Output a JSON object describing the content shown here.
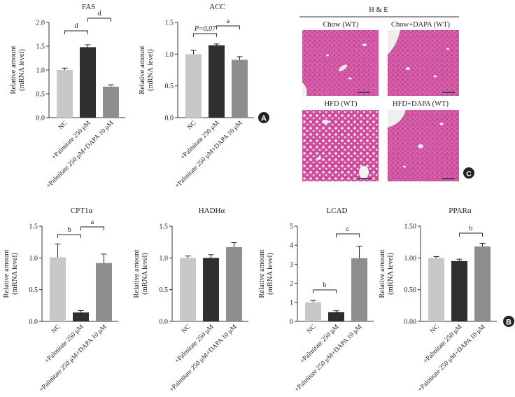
{
  "colors": {
    "NC": "#c8c8c8",
    "Palmitate": "#2f2f2f",
    "PalmitateDAPA": "#8e8e90"
  },
  "labels": {
    "ylabel_line1": "Relative amount",
    "ylabel_line2": "(mRNA level)",
    "categories": [
      "NC",
      "+Palmitate 250 μM",
      "+Palmitate 250 μM+DAPA 10 μM"
    ]
  },
  "panels": {
    "A": "A",
    "B": "B",
    "C": "C"
  },
  "histology": {
    "title": "H & E",
    "images": [
      {
        "label": "Chow (WT)"
      },
      {
        "label": "Chow+DAPA (WT)"
      },
      {
        "label": "HFD (WT)"
      },
      {
        "label": "HFD+DAPA (WT)"
      }
    ]
  },
  "chart_data": [
    {
      "type": "bar",
      "title": "FAS",
      "categories": [
        "NC",
        "+Palmitate 250 μM",
        "+Palmitate 250 μM+DAPA 10 μM"
      ],
      "values": [
        1.0,
        1.48,
        0.65
      ],
      "errors": [
        0.04,
        0.05,
        0.04
      ],
      "ylim": [
        0,
        2.0
      ],
      "yticks": [
        "0.0",
        "0.5",
        "1.0",
        "1.5",
        "2.0"
      ],
      "ylabel": "Relative amount (mRNA level)",
      "annotations": [
        {
          "from": 0,
          "to": 1,
          "text": "d"
        },
        {
          "from": 1,
          "to": 2,
          "text": "d"
        }
      ]
    },
    {
      "type": "bar",
      "title": "ACC",
      "categories": [
        "NC",
        "+Palmitate 250 μM",
        "+Palmitate 250 μM+DAPA 10 μM"
      ],
      "values": [
        1.0,
        1.14,
        0.91
      ],
      "errors": [
        0.06,
        0.02,
        0.05
      ],
      "ylim": [
        0,
        1.5
      ],
      "yticks": [
        "0.0",
        "0.5",
        "1.0",
        "1.5"
      ],
      "ylabel": "Relative amount (mRNA level)",
      "annotations": [
        {
          "from": 0,
          "to": 1,
          "text": "P=0.07"
        },
        {
          "from": 1,
          "to": 2,
          "text": "a"
        }
      ]
    },
    {
      "type": "bar",
      "title": "CPT1α",
      "categories": [
        "NC",
        "+Palmitate 250 μM",
        "+Palmitate 250 μM+DAPA 10 μM"
      ],
      "values": [
        1.01,
        0.14,
        0.92
      ],
      "errors": [
        0.21,
        0.03,
        0.14
      ],
      "ylim": [
        0,
        1.5
      ],
      "yticks": [
        "0.0",
        "0.5",
        "1.0",
        "1.5"
      ],
      "ylabel": "Relative amount (mRNA level)",
      "annotations": [
        {
          "from": 0,
          "to": 1,
          "text": "b"
        },
        {
          "from": 1,
          "to": 2,
          "text": "a"
        }
      ]
    },
    {
      "type": "bar",
      "title": "HADHα",
      "categories": [
        "NC",
        "+Palmitate 250 μM",
        "+Palmitate 250 μM+DAPA 10 μM"
      ],
      "values": [
        1.0,
        1.0,
        1.17
      ],
      "errors": [
        0.03,
        0.05,
        0.07
      ],
      "ylim": [
        0,
        1.5
      ],
      "yticks": [
        "0.0",
        "0.5",
        "1.0",
        "1.5"
      ],
      "ylabel": "Relative amount (mRNA level)",
      "annotations": []
    },
    {
      "type": "bar",
      "title": "LCAD",
      "categories": [
        "NC",
        "+Palmitate 250 μM",
        "+Palmitate 250 μM+DAPA 10 μM"
      ],
      "values": [
        1.0,
        0.48,
        3.32
      ],
      "errors": [
        0.1,
        0.08,
        0.62
      ],
      "ylim": [
        0,
        5
      ],
      "yticks": [
        "0",
        "1",
        "2",
        "3",
        "4",
        "5"
      ],
      "ylabel": "Relative amount (mRNA level)",
      "annotations": [
        {
          "from": 0,
          "to": 1,
          "text": "b"
        },
        {
          "from": 1,
          "to": 2,
          "text": "c"
        }
      ]
    },
    {
      "type": "bar",
      "title": "PPARα",
      "categories": [
        "NC",
        "+Palmitate 250 μM",
        "+Palmitate 250 μM+DAPA 10 μM"
      ],
      "values": [
        1.0,
        0.95,
        1.18
      ],
      "errors": [
        0.02,
        0.03,
        0.05
      ],
      "ylim": [
        0,
        1.5
      ],
      "yticks": [
        "0.00",
        "0.50",
        "1.00",
        "1.50"
      ],
      "ylabel": "Relative amount (mRNA level)",
      "annotations": [
        {
          "from": 1,
          "to": 2,
          "text": "b"
        }
      ]
    }
  ]
}
